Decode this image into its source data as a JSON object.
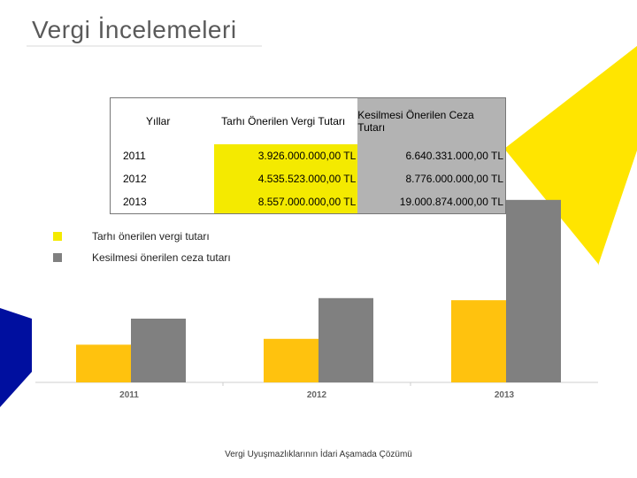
{
  "slide": {
    "title": "Vergi İncelemeleri",
    "footer": "Vergi Uyuşmazlıklarının İdari Aşamada Çözümü"
  },
  "table": {
    "headers": [
      "Yıllar",
      "Tarhı Önerilen Vergi Tutarı",
      "Kesilmesi Önerilen Ceza Tutarı"
    ],
    "rows": [
      {
        "year": "2011",
        "tax": "3.926.000.000,00 TL",
        "penalty": "6.640.331.000,00 TL"
      },
      {
        "year": "2012",
        "tax": "4.535.523.000,00 TL",
        "penalty": "8.776.000.000,00 TL"
      },
      {
        "year": "2013",
        "tax": "8.557.000.000,00 TL",
        "penalty": "19.000.874.000,00 TL"
      }
    ]
  },
  "legend": [
    {
      "label": "Tarhı önerilen vergi tutarı",
      "color": "#f4ea00"
    },
    {
      "label": "Kesilmesi önerilen ceza tutarı",
      "color": "#808080"
    }
  ],
  "colors": {
    "accent_yellow": "#ffe500",
    "accent_blue": "#000f9f",
    "bar_tax": "#ffc20e",
    "bar_penalty": "#808080"
  },
  "chart_data": {
    "type": "bar",
    "categories": [
      "2011",
      "2012",
      "2013"
    ],
    "series": [
      {
        "name": "Tarhı önerilen vergi tutarı",
        "values": [
          3926000000,
          4535523000,
          8557000000
        ]
      },
      {
        "name": "Kesilmesi önerilen ceza tutarı",
        "values": [
          6640331000,
          8776000000,
          19000874000
        ]
      }
    ],
    "title": "",
    "xlabel": "",
    "ylabel": "",
    "ylim": [
      0,
      20000000000
    ],
    "grid": false,
    "legend": "left"
  }
}
